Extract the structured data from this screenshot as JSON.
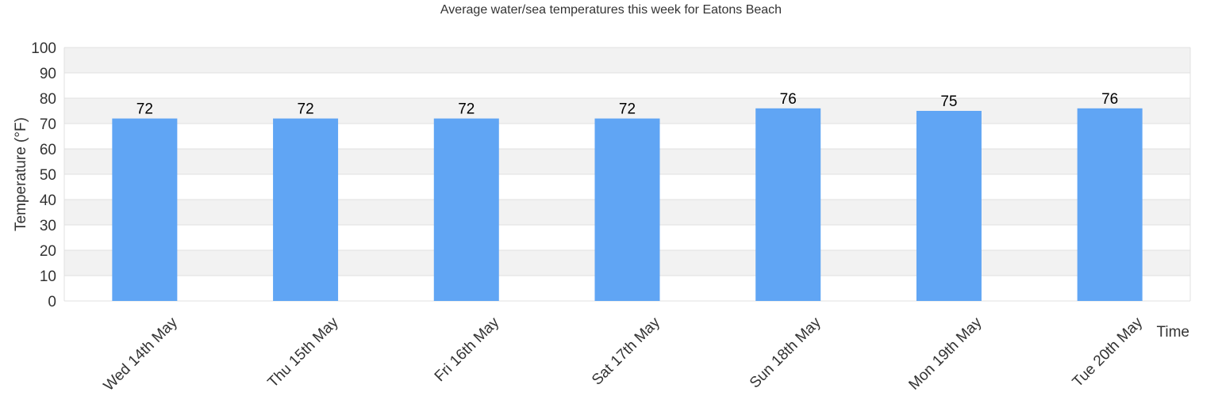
{
  "chart_data": {
    "type": "bar",
    "title": "Average water/sea temperatures this week for Eatons Beach",
    "xlabel": "Time",
    "ylabel": "Temperature (°F)",
    "categories": [
      "Wed 14th May",
      "Thu 15th May",
      "Fri 16th May",
      "Sat 17th May",
      "Sun 18th May",
      "Mon 19th May",
      "Tue 20th May"
    ],
    "values": [
      72,
      72,
      72,
      72,
      76,
      75,
      76
    ],
    "ylim": [
      0,
      100
    ],
    "yticks": [
      "0",
      "10",
      "20",
      "30",
      "40",
      "50",
      "60",
      "70",
      "80",
      "90",
      "100"
    ],
    "grid": true,
    "bar_color": "#60a5f4",
    "band_color": "#f2f2f2",
    "grid_color": "#e0e0e0"
  }
}
